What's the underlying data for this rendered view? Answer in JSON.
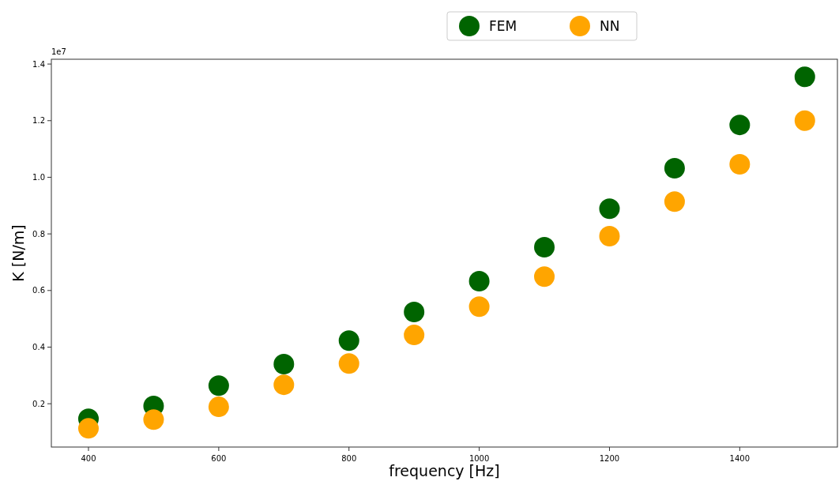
{
  "chart_data": {
    "type": "scatter",
    "xlabel": "frequency [Hz]",
    "ylabel": "K [N/m]",
    "annotations": [
      "1e7"
    ],
    "x": [
      400,
      500,
      600,
      700,
      800,
      900,
      1000,
      1100,
      1200,
      1300,
      1400,
      1500
    ],
    "series": [
      {
        "name": "FEM",
        "color": "#006400",
        "values": [
          0.147,
          0.192,
          0.264,
          0.34,
          0.423,
          0.524,
          0.633,
          0.753,
          0.889,
          1.032,
          1.185,
          1.355
        ]
      },
      {
        "name": "NN",
        "color": "#ffa500",
        "values": [
          0.113,
          0.144,
          0.189,
          0.267,
          0.342,
          0.443,
          0.543,
          0.649,
          0.792,
          0.914,
          1.046,
          1.2
        ]
      }
    ],
    "xlim": [
      343,
      1550
    ],
    "ylim": [
      0.047,
      1.417
    ],
    "xticks": [
      400,
      600,
      800,
      1000,
      1200,
      1400
    ],
    "yticks": [
      0.2,
      0.4,
      0.6,
      0.8,
      {
        "value": 1,
        "label": "1.0"
      },
      1.2,
      1.4
    ],
    "marker": "circle",
    "legend": "top",
    "grid": false
  }
}
